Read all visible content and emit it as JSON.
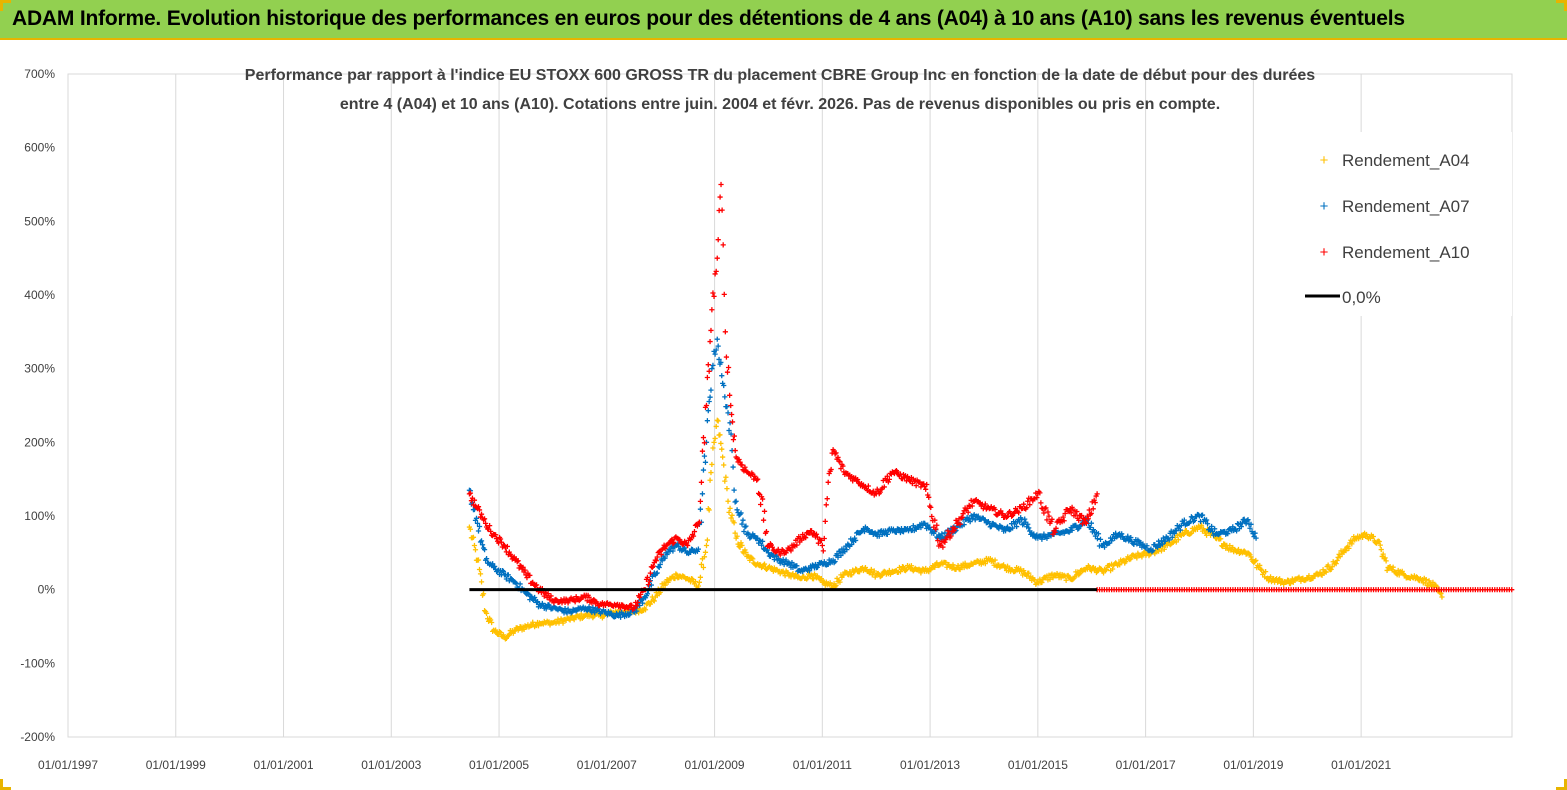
{
  "banner": {
    "title": "ADAM Informe. Evolution historique des performances en euros pour des détentions de 4 ans (A04) à 10 ans (A10) sans les revenus éventuels"
  },
  "colors": {
    "banner_bg": "#92d050",
    "banner_border": "#e8b400",
    "A04": "#ffc000",
    "A07": "#0070c0",
    "A10": "#ff0000",
    "zero": "#000000",
    "grid": "#d9d9d9"
  },
  "chart_data": {
    "type": "scatter",
    "subtitle_lines": [
      "Performance par rapport à l'indice EU STOXX 600 GROSS TR  du placement CBRE Group Inc en fonction de la date de début pour des durées",
      "entre 4 (A04) et 10 ans (A10). Cotations entre juin. 2004 et févr. 2026. Pas de revenus disponibles ou pris en compte."
    ],
    "x_tick_labels": [
      "01/01/1997",
      "01/01/1999",
      "01/01/2001",
      "01/01/2003",
      "01/01/2005",
      "01/01/2007",
      "01/01/2009",
      "01/01/2011",
      "01/01/2013",
      "01/01/2015",
      "01/01/2017",
      "01/01/2019",
      "01/01/2021"
    ],
    "x_range": [
      1997.0,
      2023.8
    ],
    "y_tick_labels": [
      "700%",
      "600%",
      "500%",
      "400%",
      "300%",
      "200%",
      "100%",
      "0%",
      "-100%",
      "-200%"
    ],
    "y_ticks": [
      700,
      600,
      500,
      400,
      300,
      200,
      100,
      0,
      -100,
      -200
    ],
    "y_range": [
      -200,
      700
    ],
    "grid": "vertical",
    "legend_position": "top-right",
    "legend": [
      "Rendement_A04",
      "Rendement_A07",
      "Rendement_A10",
      "0,0%"
    ],
    "series": [
      {
        "name": "Rendement_A04",
        "x": [
          2004.45,
          2004.6,
          2004.75,
          2004.9,
          2005.1,
          2005.3,
          2005.5,
          2005.75,
          2006.0,
          2006.3,
          2006.6,
          2006.9,
          2007.2,
          2007.5,
          2007.7,
          2007.9,
          2008.1,
          2008.3,
          2008.5,
          2008.7,
          2008.85,
          2008.95,
          2009.05,
          2009.15,
          2009.25,
          2009.4,
          2009.6,
          2009.8,
          2010.0,
          2010.2,
          2010.4,
          2010.6,
          2010.8,
          2011.0,
          2011.2,
          2011.4,
          2011.6,
          2011.8,
          2012.0,
          2012.3,
          2012.6,
          2012.9,
          2013.2,
          2013.5,
          2013.8,
          2014.1,
          2014.4,
          2014.7,
          2015.0,
          2015.3,
          2015.6,
          2015.9,
          2016.2,
          2016.5,
          2016.8,
          2017.1,
          2017.4,
          2017.7,
          2018.0,
          2018.3,
          2018.6,
          2018.9,
          2019.1,
          2019.3,
          2019.6,
          2019.9,
          2020.2,
          2020.5,
          2020.7,
          2020.9,
          2021.1,
          2021.3,
          2021.5,
          2021.8,
          2022.1,
          2022.35,
          2022.5
        ],
        "y": [
          85,
          40,
          -30,
          -55,
          -65,
          -55,
          -50,
          -45,
          -45,
          -40,
          -35,
          -35,
          -30,
          -30,
          -25,
          -10,
          10,
          20,
          15,
          5,
          60,
          170,
          230,
          180,
          120,
          70,
          45,
          35,
          30,
          25,
          20,
          15,
          20,
          10,
          5,
          20,
          25,
          30,
          20,
          25,
          30,
          25,
          35,
          30,
          35,
          40,
          30,
          25,
          10,
          20,
          15,
          30,
          25,
          35,
          45,
          50,
          60,
          75,
          85,
          70,
          55,
          50,
          30,
          15,
          10,
          15,
          20,
          35,
          55,
          70,
          75,
          65,
          30,
          20,
          15,
          5,
          -10
        ]
      },
      {
        "name": "Rendement_A07",
        "x": [
          2004.45,
          2004.6,
          2004.75,
          2004.9,
          2005.1,
          2005.3,
          2005.5,
          2005.75,
          2006.0,
          2006.3,
          2006.6,
          2006.9,
          2007.2,
          2007.5,
          2007.7,
          2007.9,
          2008.1,
          2008.3,
          2008.5,
          2008.7,
          2008.85,
          2008.95,
          2009.05,
          2009.15,
          2009.25,
          2009.4,
          2009.6,
          2009.8,
          2010.0,
          2010.2,
          2010.4,
          2010.6,
          2010.8,
          2011.0,
          2011.2,
          2011.4,
          2011.6,
          2011.8,
          2012.0,
          2012.3,
          2012.6,
          2012.9,
          2013.2,
          2013.5,
          2013.8,
          2014.1,
          2014.4,
          2014.7,
          2015.0,
          2015.3,
          2015.6,
          2015.9,
          2016.2,
          2016.5,
          2016.8,
          2017.1,
          2017.4,
          2017.7,
          2018.0,
          2018.3,
          2018.6,
          2018.9,
          2019.05
        ],
        "y": [
          135,
          90,
          40,
          30,
          20,
          10,
          -5,
          -20,
          -25,
          -30,
          -25,
          -30,
          -35,
          -30,
          -10,
          20,
          50,
          60,
          50,
          55,
          200,
          300,
          340,
          280,
          240,
          120,
          75,
          70,
          50,
          40,
          35,
          25,
          30,
          35,
          40,
          55,
          70,
          85,
          75,
          80,
          80,
          90,
          70,
          85,
          100,
          90,
          80,
          95,
          70,
          75,
          80,
          95,
          60,
          75,
          65,
          55,
          70,
          90,
          100,
          75,
          80,
          95,
          70
        ]
      },
      {
        "name": "Rendement_A10",
        "x": [
          2004.45,
          2004.6,
          2004.75,
          2004.9,
          2005.1,
          2005.3,
          2005.5,
          2005.75,
          2006.0,
          2006.3,
          2006.6,
          2006.9,
          2007.2,
          2007.5,
          2007.7,
          2007.9,
          2008.1,
          2008.3,
          2008.5,
          2008.7,
          2008.85,
          2008.95,
          2009.05,
          2009.12,
          2009.2,
          2009.3,
          2009.4,
          2009.6,
          2009.8,
          2010.0,
          2010.2,
          2010.4,
          2010.6,
          2010.8,
          2011.0,
          2011.2,
          2011.4,
          2011.6,
          2011.8,
          2012.0,
          2012.3,
          2012.6,
          2012.9,
          2013.2,
          2013.5,
          2013.8,
          2014.1,
          2014.4,
          2014.7,
          2015.0,
          2015.3,
          2015.6,
          2015.9,
          2016.1
        ],
        "y": [
          130,
          110,
          90,
          75,
          60,
          40,
          20,
          0,
          -15,
          -15,
          -10,
          -20,
          -20,
          -25,
          0,
          40,
          60,
          70,
          60,
          90,
          250,
          380,
          450,
          550,
          350,
          250,
          180,
          160,
          150,
          60,
          50,
          55,
          70,
          80,
          60,
          190,
          160,
          150,
          140,
          130,
          160,
          150,
          140,
          60,
          90,
          120,
          110,
          100,
          110,
          130,
          80,
          110,
          90,
          130
        ]
      }
    ],
    "zero_line": {
      "name": "0,0%",
      "x": [
        2004.45,
        2016.1
      ],
      "y": 0
    },
    "zero_markers_A10": {
      "x": [
        2016.1,
        2023.8
      ],
      "y": 0
    }
  }
}
